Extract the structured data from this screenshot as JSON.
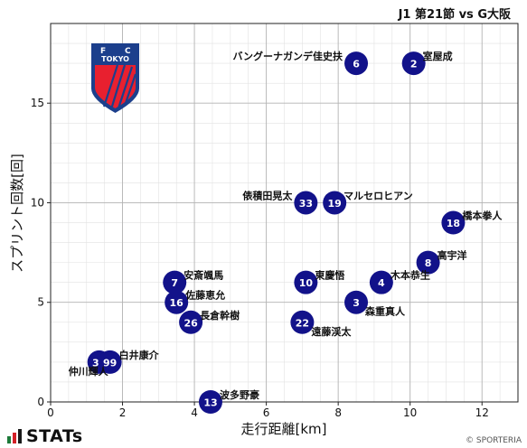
{
  "title": "J1 第21節 vs G大阪",
  "credit": "© SPORTERIA",
  "brand": {
    "name": "STATs",
    "bar_colors": [
      "#1d7a3a",
      "#d32027",
      "#1a1a1a"
    ]
  },
  "team": {
    "emblem_text": "F C TOKYO",
    "emblem_letters": [
      "F",
      "C"
    ],
    "emblem_word": "TOKYO",
    "colors": {
      "blue": "#1c3f8c",
      "red": "#e8202f",
      "white": "#ffffff"
    }
  },
  "chart_data": {
    "type": "scatter",
    "xlabel": "走行距離[km]",
    "ylabel": "スプリント回数[回]",
    "xlim": [
      0,
      13
    ],
    "ylim": [
      0,
      19
    ],
    "xticks": [
      0,
      2,
      4,
      6,
      8,
      10,
      12
    ],
    "yticks": [
      0,
      5,
      10,
      15
    ],
    "grid": true,
    "minor_grid": true,
    "marker_color": "#12128a",
    "points": [
      {
        "number": "6",
        "name": "バングーナガンデ佳史扶",
        "x": 8.5,
        "y": 17,
        "label_side": "left"
      },
      {
        "number": "2",
        "name": "室屋成",
        "x": 10.1,
        "y": 17,
        "label_side": "right"
      },
      {
        "number": "33",
        "name": "俵積田晃太",
        "x": 7.1,
        "y": 10,
        "label_side": "left"
      },
      {
        "number": "19",
        "name": "マルセロヒアン",
        "x": 7.9,
        "y": 10,
        "label_side": "right"
      },
      {
        "number": "18",
        "name": "橋本拳人",
        "x": 11.2,
        "y": 9,
        "label_side": "right"
      },
      {
        "number": "8",
        "name": "高宇洋",
        "x": 10.5,
        "y": 7,
        "label_side": "right"
      },
      {
        "number": "7",
        "name": "安斎颯馬",
        "x": 3.45,
        "y": 6,
        "label_side": "right"
      },
      {
        "number": "10",
        "name": "東慶悟",
        "x": 7.1,
        "y": 6,
        "label_side": "right"
      },
      {
        "number": "4",
        "name": "木本恭生",
        "x": 9.2,
        "y": 6,
        "label_side": "right"
      },
      {
        "number": "16",
        "name": "佐藤恵允",
        "x": 3.5,
        "y": 5,
        "label_side": "right"
      },
      {
        "number": "3",
        "name": "森重真人",
        "x": 8.5,
        "y": 5,
        "label_side": "below-right"
      },
      {
        "number": "26",
        "name": "長倉幹樹",
        "x": 3.9,
        "y": 4,
        "label_side": "right"
      },
      {
        "number": "22",
        "name": "遠藤渓太",
        "x": 7.0,
        "y": 4,
        "label_side": "below-right"
      },
      {
        "number": "39",
        "name": "仲川輝人",
        "x": 1.35,
        "y": 2,
        "label_side": "below-left"
      },
      {
        "number": "99",
        "name": "白井康介",
        "x": 1.65,
        "y": 2,
        "label_side": "right"
      },
      {
        "number": "13",
        "name": "波多野豪",
        "x": 4.45,
        "y": 0,
        "label_side": "right"
      }
    ]
  }
}
